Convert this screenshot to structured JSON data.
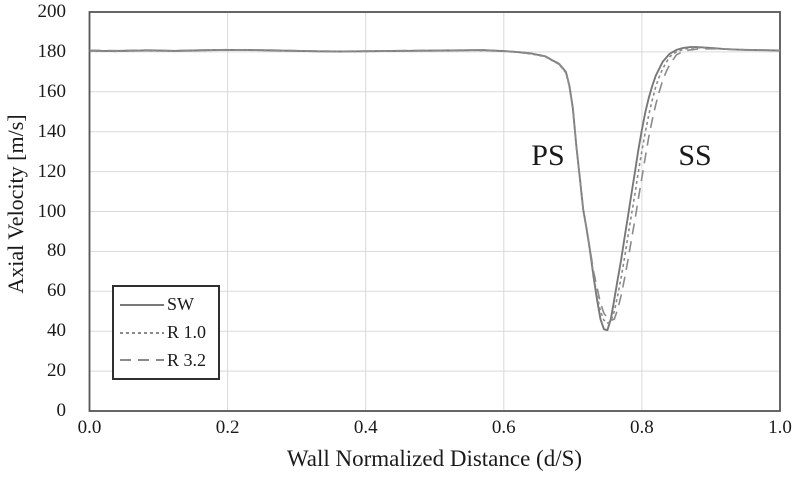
{
  "figure": {
    "background": "#ffffff",
    "frame_color": "#555555",
    "grid_color": "#d9d9d9",
    "text_color": "#1a1a1a"
  },
  "chart_data": {
    "type": "line",
    "title": "",
    "xlabel": "Wall Normalized Distance (d/S)",
    "ylabel": "Axial Velocity [m/s]",
    "xlim": [
      0.0,
      1.0
    ],
    "ylim": [
      0,
      200
    ],
    "x_ticks": [
      "0.0",
      "0.2",
      "0.4",
      "0.6",
      "0.8",
      "1.0"
    ],
    "y_ticks": [
      "0",
      "20",
      "40",
      "60",
      "80",
      "100",
      "120",
      "140",
      "160",
      "180",
      "200"
    ],
    "grid": true,
    "legend_position": "lower-left",
    "annotations": [
      {
        "label": "PS",
        "x": 0.664,
        "y": 128
      },
      {
        "label": "SS",
        "x": 0.877,
        "y": 128
      }
    ],
    "series": [
      {
        "name": "SW",
        "style": "solid",
        "color": "#787878",
        "points": [
          [
            0.0,
            180.6
          ],
          [
            0.03,
            180.4
          ],
          [
            0.06,
            180.6
          ],
          [
            0.09,
            180.8
          ],
          [
            0.12,
            180.5
          ],
          [
            0.15,
            180.7
          ],
          [
            0.18,
            180.9
          ],
          [
            0.21,
            181.0
          ],
          [
            0.24,
            180.9
          ],
          [
            0.27,
            180.7
          ],
          [
            0.3,
            180.5
          ],
          [
            0.33,
            180.3
          ],
          [
            0.36,
            180.2
          ],
          [
            0.39,
            180.3
          ],
          [
            0.42,
            180.4
          ],
          [
            0.45,
            180.5
          ],
          [
            0.48,
            180.6
          ],
          [
            0.51,
            180.7
          ],
          [
            0.54,
            180.8
          ],
          [
            0.57,
            180.9
          ],
          [
            0.6,
            180.4
          ],
          [
            0.62,
            179.9
          ],
          [
            0.64,
            179.2
          ],
          [
            0.66,
            177.8
          ],
          [
            0.68,
            174.0
          ],
          [
            0.69,
            170.0
          ],
          [
            0.695,
            163.0
          ],
          [
            0.7,
            152.0
          ],
          [
            0.705,
            133.0
          ],
          [
            0.71,
            117.0
          ],
          [
            0.715,
            101.0
          ],
          [
            0.72,
            91.0
          ],
          [
            0.725,
            80.0
          ],
          [
            0.73,
            67.0
          ],
          [
            0.735,
            56.0
          ],
          [
            0.74,
            46.0
          ],
          [
            0.745,
            41.0
          ],
          [
            0.75,
            40.5
          ],
          [
            0.755,
            46.0
          ],
          [
            0.76,
            56.0
          ],
          [
            0.765,
            66.0
          ],
          [
            0.77,
            76.0
          ],
          [
            0.775,
            87.0
          ],
          [
            0.78,
            98.0
          ],
          [
            0.785,
            109.0
          ],
          [
            0.79,
            120.0
          ],
          [
            0.795,
            131.0
          ],
          [
            0.8,
            141.0
          ],
          [
            0.805,
            150.0
          ],
          [
            0.81,
            157.0
          ],
          [
            0.815,
            163.0
          ],
          [
            0.82,
            168.0
          ],
          [
            0.83,
            175.0
          ],
          [
            0.84,
            179.0
          ],
          [
            0.85,
            181.0
          ],
          [
            0.86,
            182.0
          ],
          [
            0.87,
            182.4
          ],
          [
            0.88,
            182.4
          ],
          [
            0.9,
            182.0
          ],
          [
            0.92,
            181.4
          ],
          [
            0.95,
            181.0
          ],
          [
            1.0,
            180.7
          ]
        ]
      },
      {
        "name": "R 1.0",
        "style": "dotted",
        "color": "#8a8a8a",
        "points": [
          [
            0.0,
            180.4
          ],
          [
            0.04,
            180.3
          ],
          [
            0.08,
            180.6
          ],
          [
            0.12,
            180.4
          ],
          [
            0.16,
            180.7
          ],
          [
            0.2,
            180.9
          ],
          [
            0.24,
            180.8
          ],
          [
            0.28,
            180.6
          ],
          [
            0.32,
            180.3
          ],
          [
            0.36,
            180.1
          ],
          [
            0.4,
            180.2
          ],
          [
            0.44,
            180.4
          ],
          [
            0.48,
            180.5
          ],
          [
            0.52,
            180.6
          ],
          [
            0.56,
            180.8
          ],
          [
            0.6,
            180.3
          ],
          [
            0.62,
            179.8
          ],
          [
            0.64,
            179.0
          ],
          [
            0.66,
            177.6
          ],
          [
            0.68,
            173.8
          ],
          [
            0.69,
            169.5
          ],
          [
            0.695,
            162.5
          ],
          [
            0.7,
            151.5
          ],
          [
            0.705,
            132.5
          ],
          [
            0.71,
            116.5
          ],
          [
            0.715,
            100.5
          ],
          [
            0.72,
            90.5
          ],
          [
            0.725,
            80.5
          ],
          [
            0.73,
            68.0
          ],
          [
            0.735,
            58.0
          ],
          [
            0.74,
            50.0
          ],
          [
            0.745,
            45.5
          ],
          [
            0.75,
            44.0
          ],
          [
            0.755,
            45.0
          ],
          [
            0.76,
            50.0
          ],
          [
            0.765,
            58.0
          ],
          [
            0.77,
            67.0
          ],
          [
            0.775,
            77.0
          ],
          [
            0.78,
            88.0
          ],
          [
            0.785,
            98.5
          ],
          [
            0.79,
            109.0
          ],
          [
            0.795,
            120.0
          ],
          [
            0.8,
            130.5
          ],
          [
            0.805,
            140.0
          ],
          [
            0.81,
            148.5
          ],
          [
            0.815,
            156.0
          ],
          [
            0.82,
            162.5
          ],
          [
            0.825,
            167.5
          ],
          [
            0.83,
            171.5
          ],
          [
            0.84,
            177.5
          ],
          [
            0.85,
            180.0
          ],
          [
            0.86,
            181.3
          ],
          [
            0.87,
            181.9
          ],
          [
            0.88,
            182.1
          ],
          [
            0.9,
            181.9
          ],
          [
            0.92,
            181.4
          ],
          [
            0.95,
            181.0
          ],
          [
            1.0,
            180.7
          ]
        ]
      },
      {
        "name": "R 3.2",
        "style": "dashed",
        "color": "#8a8a8a",
        "points": [
          [
            0.0,
            180.8
          ],
          [
            0.04,
            180.6
          ],
          [
            0.08,
            180.9
          ],
          [
            0.12,
            180.6
          ],
          [
            0.16,
            180.9
          ],
          [
            0.2,
            181.1
          ],
          [
            0.24,
            181.0
          ],
          [
            0.28,
            180.8
          ],
          [
            0.32,
            180.5
          ],
          [
            0.36,
            180.3
          ],
          [
            0.4,
            180.4
          ],
          [
            0.44,
            180.6
          ],
          [
            0.48,
            180.7
          ],
          [
            0.52,
            180.8
          ],
          [
            0.56,
            181.0
          ],
          [
            0.6,
            180.5
          ],
          [
            0.62,
            180.0
          ],
          [
            0.64,
            179.3
          ],
          [
            0.66,
            177.9
          ],
          [
            0.68,
            174.2
          ],
          [
            0.69,
            170.2
          ],
          [
            0.695,
            163.2
          ],
          [
            0.7,
            152.2
          ],
          [
            0.705,
            133.2
          ],
          [
            0.71,
            117.2
          ],
          [
            0.715,
            101.2
          ],
          [
            0.72,
            91.2
          ],
          [
            0.725,
            81.0
          ],
          [
            0.73,
            70.0
          ],
          [
            0.735,
            62.0
          ],
          [
            0.74,
            54.0
          ],
          [
            0.745,
            49.0
          ],
          [
            0.75,
            46.5
          ],
          [
            0.755,
            45.5
          ],
          [
            0.76,
            46.0
          ],
          [
            0.765,
            51.0
          ],
          [
            0.77,
            58.0
          ],
          [
            0.775,
            66.5
          ],
          [
            0.78,
            76.0
          ],
          [
            0.785,
            86.0
          ],
          [
            0.79,
            96.0
          ],
          [
            0.795,
            106.5
          ],
          [
            0.8,
            117.0
          ],
          [
            0.805,
            127.5
          ],
          [
            0.81,
            137.5
          ],
          [
            0.815,
            146.0
          ],
          [
            0.82,
            153.5
          ],
          [
            0.825,
            160.0
          ],
          [
            0.83,
            165.5
          ],
          [
            0.835,
            170.0
          ],
          [
            0.84,
            173.5
          ],
          [
            0.85,
            178.5
          ],
          [
            0.86,
            180.3
          ],
          [
            0.87,
            181.0
          ],
          [
            0.88,
            181.4
          ],
          [
            0.9,
            181.6
          ],
          [
            0.92,
            181.4
          ],
          [
            0.95,
            181.1
          ],
          [
            1.0,
            180.8
          ]
        ]
      }
    ]
  },
  "legend": {
    "items": [
      {
        "label": "SW",
        "line": "solid-gray-line"
      },
      {
        "label": "R 1.0",
        "line": "dotted-gray-line"
      },
      {
        "label": "R 3.2",
        "line": "dashed-gray-line"
      }
    ]
  }
}
